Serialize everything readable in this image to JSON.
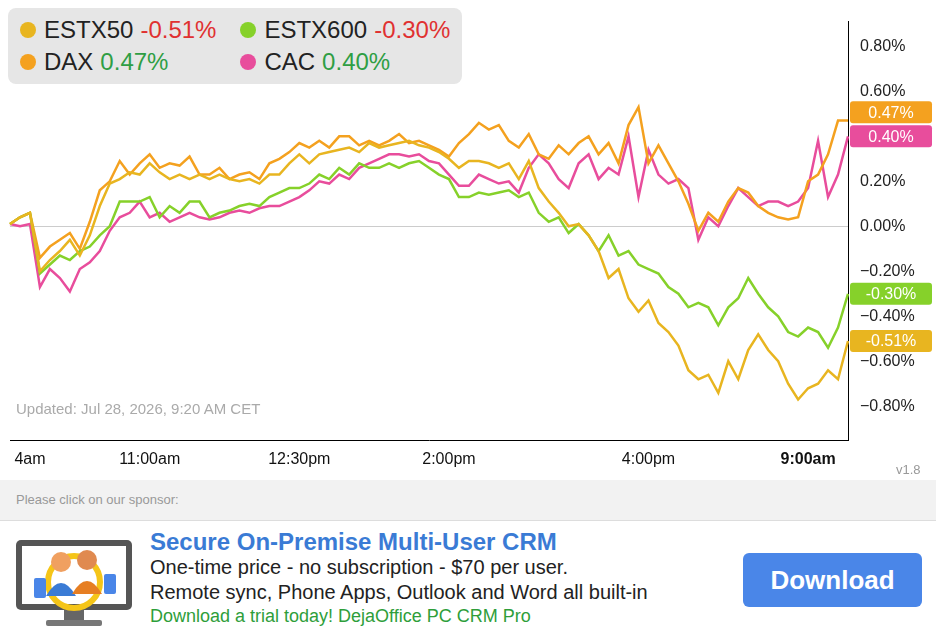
{
  "chart_data": {
    "type": "line",
    "categories": [
      null,
      null,
      "4am",
      null,
      null,
      null,
      null,
      null,
      null,
      null,
      null,
      null,
      null,
      null,
      "11:00am",
      null,
      null,
      null,
      null,
      null,
      null,
      null,
      null,
      null,
      null,
      null,
      null,
      null,
      null,
      "12:30pm",
      null,
      null,
      null,
      null,
      null,
      null,
      null,
      null,
      null,
      null,
      null,
      null,
      null,
      null,
      "2:00pm",
      null,
      null,
      null,
      null,
      null,
      null,
      null,
      null,
      null,
      null,
      null,
      null,
      null,
      null,
      null,
      null,
      null,
      null,
      null,
      "4:00pm",
      null,
      null,
      null,
      null,
      null,
      null,
      null,
      null,
      null,
      null,
      null,
      null,
      null,
      null,
      null,
      "9:00am",
      null,
      null,
      null,
      null
    ],
    "series": [
      {
        "name": "ESTX50",
        "color": "#e8b520",
        "change": -0.51,
        "change_label": "-0.51%",
        "values": [
          0.01,
          0.04,
          0.06,
          -0.2,
          -0.15,
          -0.11,
          -0.06,
          -0.13,
          -0.04,
          0.09,
          0.19,
          0.21,
          0.24,
          0.23,
          0.28,
          0.24,
          0.21,
          0.23,
          0.21,
          0.23,
          0.21,
          0.23,
          0.21,
          0.2,
          0.21,
          0.19,
          0.23,
          0.23,
          0.28,
          0.32,
          0.28,
          0.32,
          0.33,
          0.34,
          0.35,
          0.33,
          0.37,
          0.35,
          0.36,
          0.37,
          0.38,
          0.36,
          0.35,
          0.33,
          0.3,
          0.26,
          0.29,
          0.29,
          0.28,
          0.26,
          0.28,
          0.21,
          0.29,
          0.17,
          0.11,
          0.06,
          0.0,
          0.01,
          -0.04,
          -0.11,
          -0.23,
          -0.19,
          -0.32,
          -0.38,
          -0.33,
          -0.43,
          -0.47,
          -0.53,
          -0.64,
          -0.68,
          -0.66,
          -0.74,
          -0.6,
          -0.68,
          -0.55,
          -0.48,
          -0.55,
          -0.6,
          -0.7,
          -0.77,
          -0.72,
          -0.7,
          -0.64,
          -0.68,
          -0.51
        ]
      },
      {
        "name": "ESTX600",
        "color": "#86d12a",
        "change": -0.3,
        "change_label": "-0.30%",
        "values": [
          0.01,
          0.04,
          0.06,
          -0.21,
          -0.17,
          -0.13,
          -0.15,
          -0.11,
          -0.09,
          -0.04,
          0.0,
          0.11,
          0.11,
          0.11,
          0.13,
          0.04,
          0.09,
          0.06,
          0.11,
          0.11,
          0.04,
          0.06,
          0.07,
          0.09,
          0.1,
          0.09,
          0.13,
          0.15,
          0.17,
          0.17,
          0.19,
          0.23,
          0.21,
          0.26,
          0.23,
          0.28,
          0.26,
          0.26,
          0.28,
          0.26,
          0.28,
          0.29,
          0.26,
          0.23,
          0.21,
          0.13,
          0.13,
          0.15,
          0.14,
          0.15,
          0.16,
          0.13,
          0.15,
          0.06,
          0.02,
          0.04,
          -0.03,
          0.01,
          -0.04,
          -0.11,
          -0.04,
          -0.13,
          -0.11,
          -0.17,
          -0.19,
          -0.21,
          -0.27,
          -0.3,
          -0.36,
          -0.34,
          -0.36,
          -0.44,
          -0.36,
          -0.32,
          -0.23,
          -0.3,
          -0.36,
          -0.4,
          -0.47,
          -0.49,
          -0.45,
          -0.47,
          -0.54,
          -0.45,
          -0.3
        ]
      },
      {
        "name": "DAX",
        "color": "#f4a11f",
        "change": 0.47,
        "change_label": "0.47%",
        "values": [
          0.01,
          0.04,
          0.06,
          -0.14,
          -0.09,
          -0.06,
          -0.03,
          -0.1,
          0.02,
          0.16,
          0.2,
          0.29,
          0.23,
          0.28,
          0.32,
          0.26,
          0.28,
          0.27,
          0.31,
          0.23,
          0.23,
          0.26,
          0.21,
          0.23,
          0.24,
          0.21,
          0.28,
          0.3,
          0.33,
          0.37,
          0.35,
          0.38,
          0.35,
          0.4,
          0.4,
          0.36,
          0.38,
          0.36,
          0.38,
          0.41,
          0.37,
          0.38,
          0.36,
          0.34,
          0.31,
          0.37,
          0.41,
          0.46,
          0.43,
          0.45,
          0.38,
          0.35,
          0.41,
          0.32,
          0.3,
          0.36,
          0.32,
          0.37,
          0.4,
          0.32,
          0.37,
          0.28,
          0.45,
          0.53,
          0.28,
          0.36,
          0.28,
          0.2,
          0.1,
          -0.02,
          0.06,
          0.02,
          0.11,
          0.17,
          0.15,
          0.09,
          0.06,
          0.04,
          0.03,
          0.04,
          0.2,
          0.23,
          0.32,
          0.47,
          0.47
        ]
      },
      {
        "name": "CAC",
        "color": "#e84d9c",
        "change": 0.4,
        "change_label": "0.40%",
        "values": [
          0.01,
          0.0,
          0.01,
          -0.27,
          -0.19,
          -0.23,
          -0.29,
          -0.19,
          -0.16,
          -0.11,
          -0.02,
          0.04,
          0.06,
          0.11,
          0.04,
          0.06,
          0.02,
          0.04,
          0.06,
          0.04,
          0.03,
          0.04,
          0.06,
          0.07,
          0.06,
          0.08,
          0.09,
          0.09,
          0.11,
          0.13,
          0.16,
          0.2,
          0.19,
          0.23,
          0.21,
          0.26,
          0.28,
          0.3,
          0.32,
          0.32,
          0.31,
          0.32,
          0.29,
          0.28,
          0.23,
          0.18,
          0.18,
          0.23,
          0.21,
          0.19,
          0.2,
          0.15,
          0.26,
          0.32,
          0.28,
          0.21,
          0.17,
          0.28,
          0.32,
          0.21,
          0.26,
          0.23,
          0.4,
          0.13,
          0.34,
          0.23,
          0.19,
          0.21,
          0.17,
          -0.06,
          0.04,
          0.0,
          0.09,
          0.17,
          0.13,
          0.09,
          0.11,
          0.11,
          0.09,
          0.11,
          0.17,
          0.38,
          0.13,
          0.23,
          0.4
        ]
      }
    ],
    "ylim": [
      -0.95,
      0.91
    ],
    "yticks": [
      {
        "value": -0.8,
        "label": "−0.80%"
      },
      {
        "value": -0.6,
        "label": "−0.60%"
      },
      {
        "value": -0.4,
        "label": "−0.40%"
      },
      {
        "value": -0.2,
        "label": "−0.20%"
      },
      {
        "value": 0,
        "label": "0.00%"
      },
      {
        "value": 0.2,
        "label": "0.20%"
      },
      {
        "value": 0.6,
        "label": "0.60%"
      },
      {
        "value": 0.8,
        "label": "0.80%"
      }
    ],
    "legend": "top-left",
    "updated": "Updated: Jul 28, 2026, 9:20 AM CET"
  },
  "version": "v1.8",
  "sponsor": {
    "prompt": "Please click on our sponsor:",
    "title": "Secure On-Premise Multi-User CRM",
    "lines": [
      "One-time price - no subscription - $70 per user.",
      "Remote sync, Phone Apps, Outlook and Word all built-in"
    ],
    "call_to_action": "Download a trial today! DejaOffice PC CRM Pro",
    "button": "Download"
  }
}
